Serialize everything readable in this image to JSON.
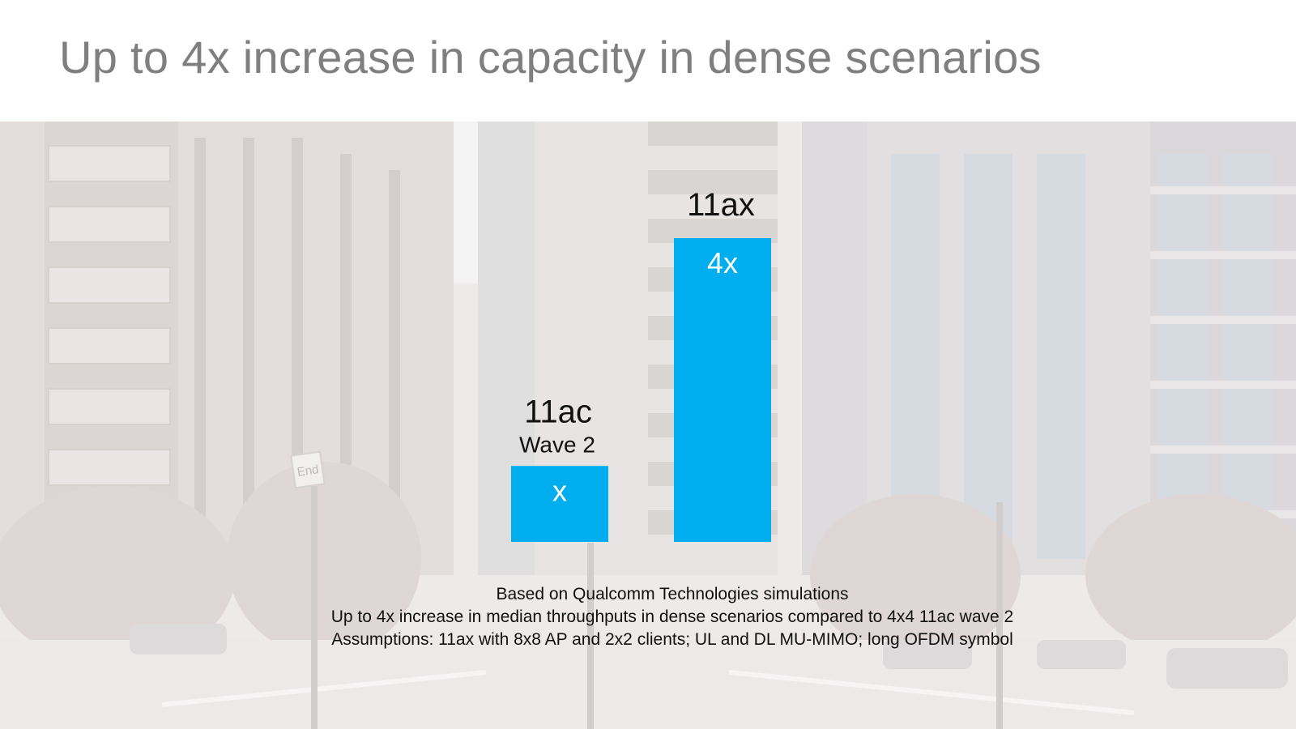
{
  "slide": {
    "title": "Up to 4x increase in capacity in dense scenarios",
    "sign_text": "End"
  },
  "chart_data": {
    "type": "bar",
    "categories": [
      "11ac",
      "11ax"
    ],
    "category_sublabels": [
      "Wave 2",
      ""
    ],
    "values": [
      1,
      4
    ],
    "data_labels": [
      "x",
      "4x"
    ],
    "ylim": [
      0,
      4
    ],
    "title": "",
    "xlabel": "",
    "ylabel": "",
    "grid": false,
    "bar_color": "#00aeef"
  },
  "footnotes": [
    "Based on Qualcomm Technologies simulations",
    "Up to 4x increase in median throughputs in dense scenarios compared to 4x4 11ac wave 2",
    "Assumptions: 11ax with 8x8 AP and 2x2 clients;  UL and DL MU-MIMO; long OFDM symbol"
  ],
  "colors": {
    "title": "#7f7f7f",
    "bar": "#00aeef",
    "bar_label": "#ffffff",
    "category_label": "#111111"
  }
}
